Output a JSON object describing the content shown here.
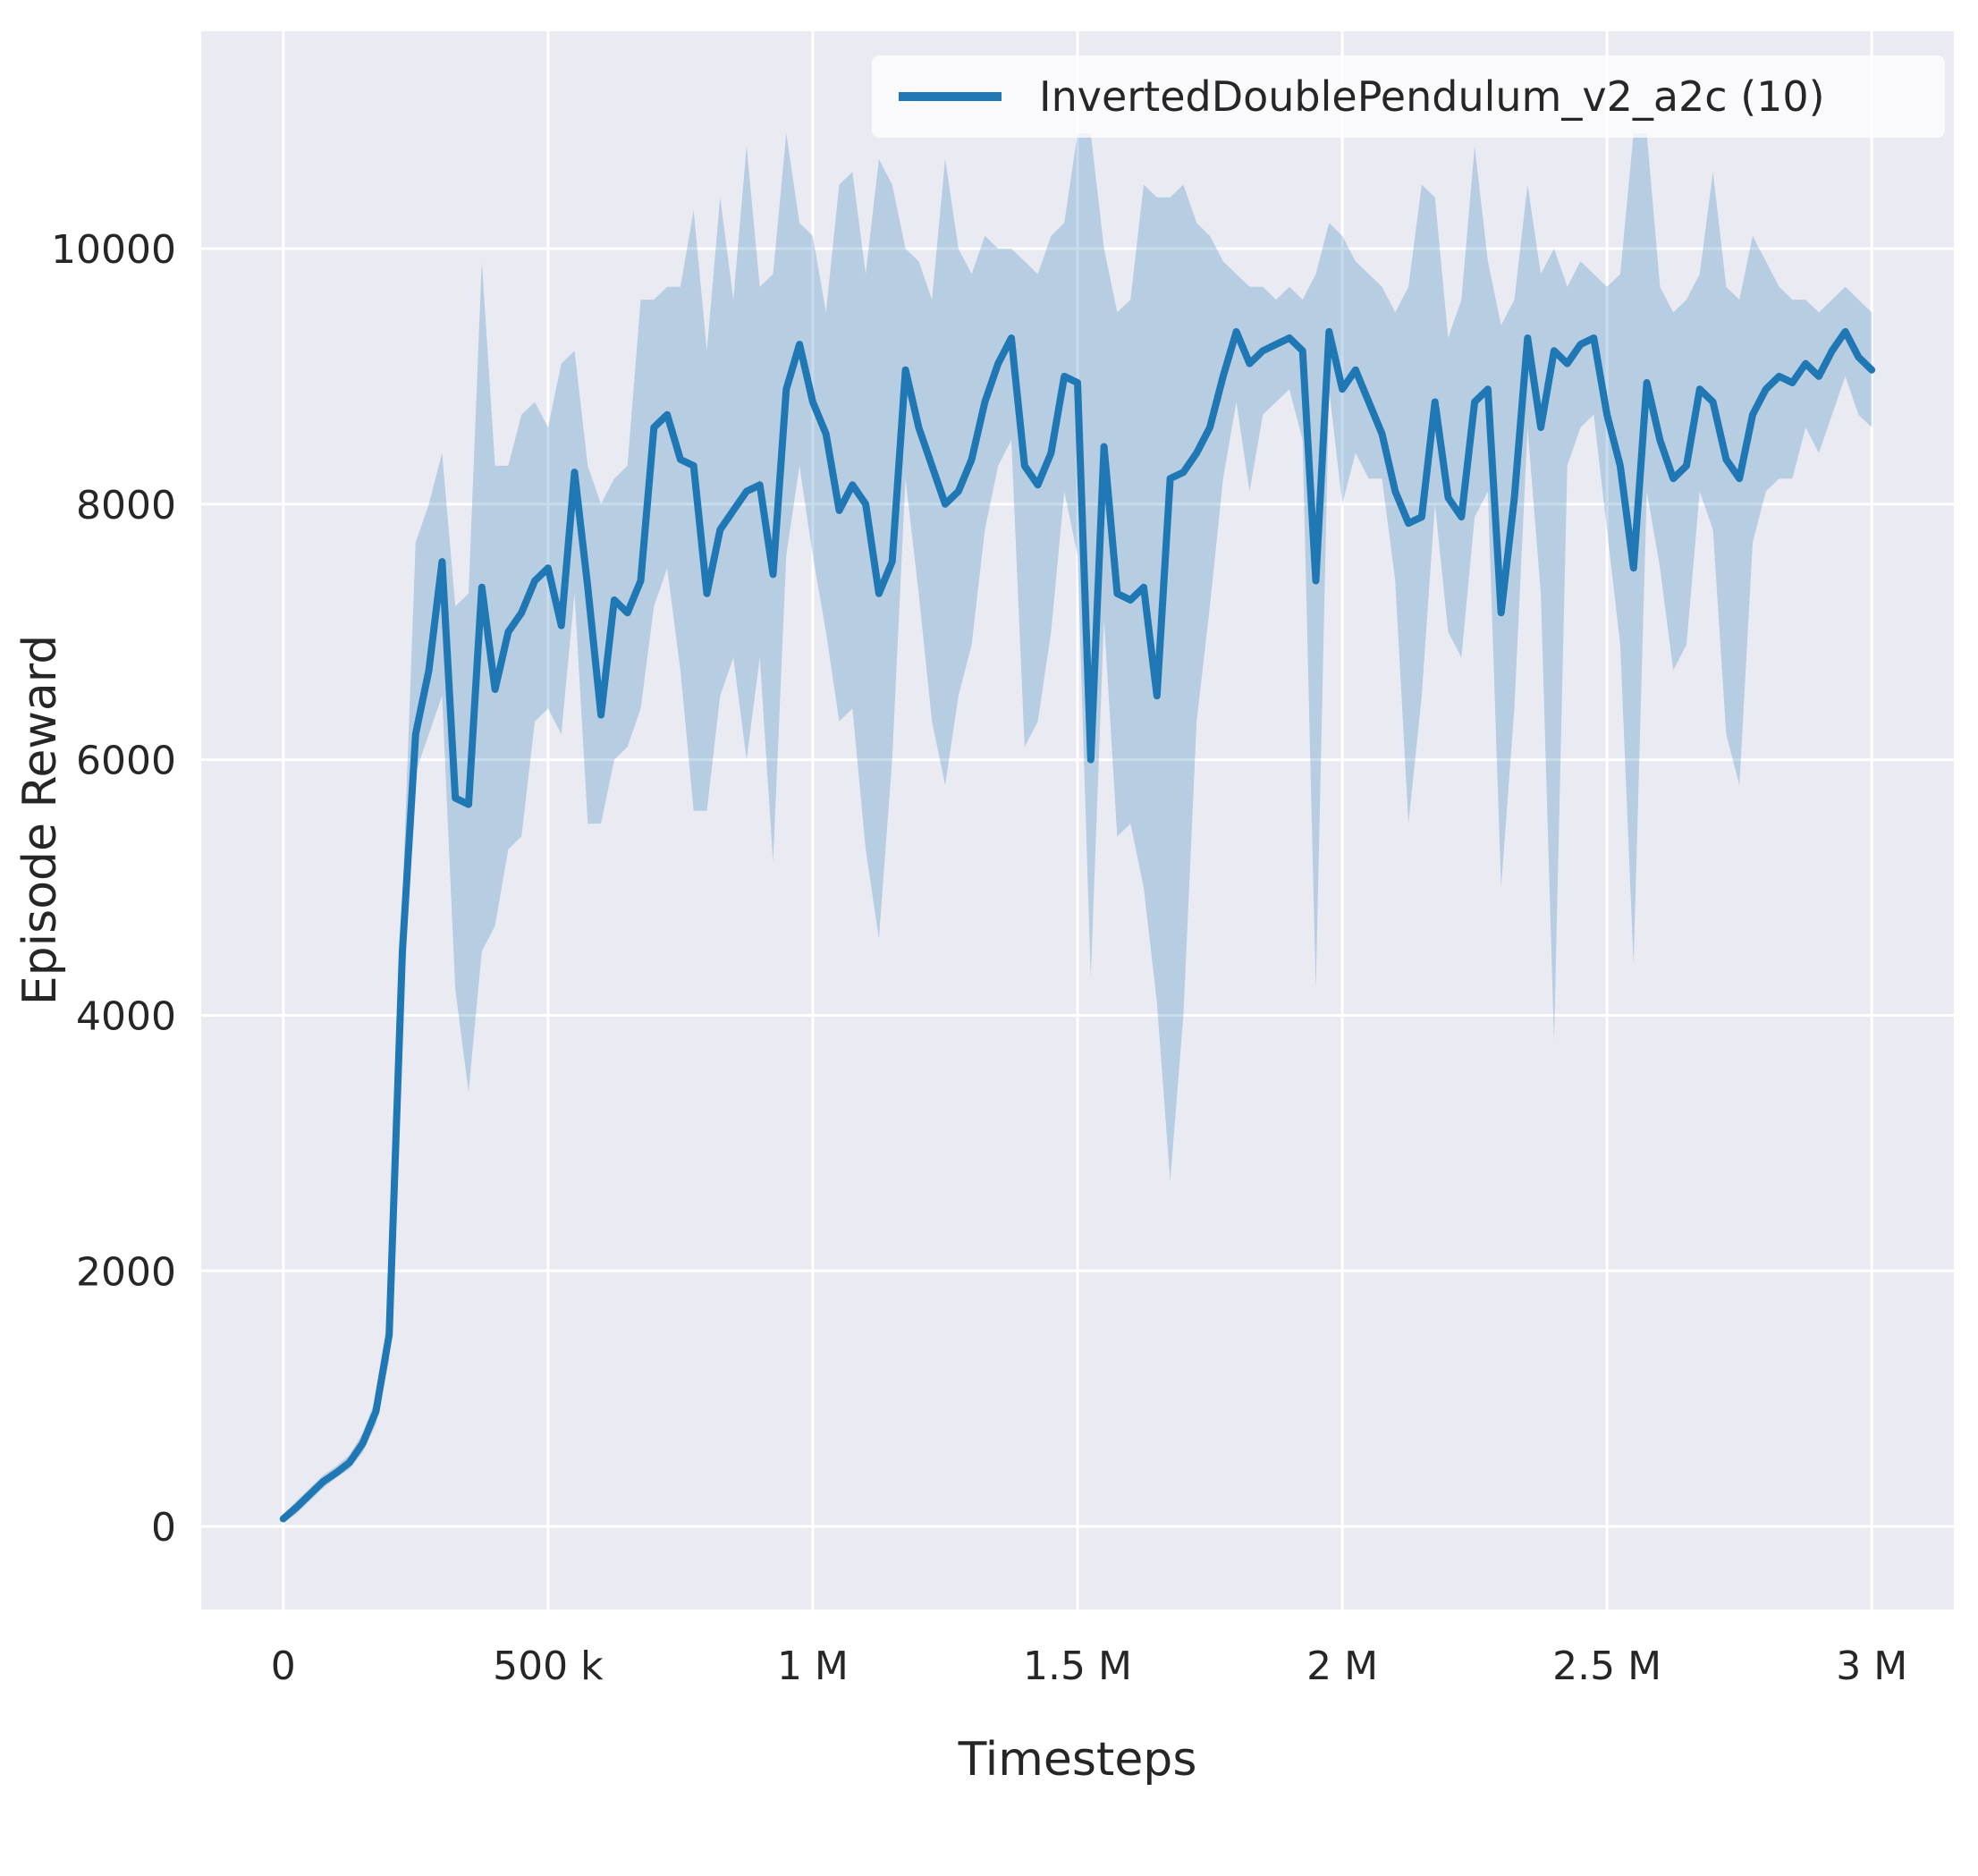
{
  "figure": {
    "background": "#ffffff",
    "plot_background": "#eaeaf2",
    "grid_color": "#ffffff",
    "text_color": "#262626"
  },
  "legend": {
    "label": "InvertedDoublePendulum_v2_a2c (10)",
    "line_color": "#1f77b4",
    "position": "upper right"
  },
  "chart_data": {
    "type": "line",
    "title": "",
    "xlabel": "Timesteps",
    "ylabel": "Episode Reward",
    "grid": true,
    "legend_position": "upper right",
    "xlim": [
      -155000,
      3155000
    ],
    "ylim": [
      -650,
      11700
    ],
    "x_ticks": [
      {
        "value": 0,
        "label": "0"
      },
      {
        "value": 500000,
        "label": "500 k"
      },
      {
        "value": 1000000,
        "label": "1 M"
      },
      {
        "value": 1500000,
        "label": "1.5 M"
      },
      {
        "value": 2000000,
        "label": "2 M"
      },
      {
        "value": 2500000,
        "label": "2.5 M"
      },
      {
        "value": 3000000,
        "label": "3 M"
      }
    ],
    "y_ticks": [
      {
        "value": 0,
        "label": "0"
      },
      {
        "value": 2000,
        "label": "2000"
      },
      {
        "value": 4000,
        "label": "4000"
      },
      {
        "value": 6000,
        "label": "6000"
      },
      {
        "value": 8000,
        "label": "8000"
      },
      {
        "value": 10000,
        "label": "10000"
      }
    ],
    "series": [
      {
        "name": "InvertedDoublePendulum_v2_a2c (10)",
        "color": "#1f77b4",
        "band_color": "#1f77b4",
        "band_opacity": 0.25,
        "line_width": 8,
        "x": [
          0,
          25000,
          50000,
          75000,
          100000,
          125000,
          150000,
          175000,
          200000,
          225000,
          250000,
          275000,
          300000,
          325000,
          350000,
          375000,
          400000,
          425000,
          450000,
          475000,
          500000,
          525000,
          550000,
          575000,
          600000,
          625000,
          650000,
          675000,
          700000,
          725000,
          750000,
          775000,
          800000,
          825000,
          850000,
          875000,
          900000,
          925000,
          950000,
          975000,
          1000000,
          1025000,
          1050000,
          1075000,
          1100000,
          1125000,
          1150000,
          1175000,
          1200000,
          1225000,
          1250000,
          1275000,
          1300000,
          1325000,
          1350000,
          1375000,
          1400000,
          1425000,
          1450000,
          1475000,
          1500000,
          1525000,
          1550000,
          1575000,
          1600000,
          1625000,
          1650000,
          1675000,
          1700000,
          1725000,
          1750000,
          1775000,
          1800000,
          1825000,
          1850000,
          1875000,
          1900000,
          1925000,
          1950000,
          1975000,
          2000000,
          2025000,
          2050000,
          2075000,
          2100000,
          2125000,
          2150000,
          2175000,
          2200000,
          2225000,
          2250000,
          2275000,
          2300000,
          2325000,
          2350000,
          2375000,
          2400000,
          2425000,
          2450000,
          2475000,
          2500000,
          2525000,
          2550000,
          2575000,
          2600000,
          2625000,
          2650000,
          2675000,
          2700000,
          2725000,
          2750000,
          2775000,
          2800000,
          2825000,
          2850000,
          2875000,
          2900000,
          2925000,
          2950000,
          2975000,
          3000000
        ],
        "mean": [
          60,
          150,
          250,
          350,
          420,
          500,
          650,
          900,
          1500,
          4500,
          6200,
          6700,
          7550,
          5700,
          5650,
          7350,
          6550,
          7000,
          7150,
          7400,
          7500,
          7050,
          8250,
          7350,
          6350,
          7250,
          7150,
          7400,
          8600,
          8700,
          8350,
          8300,
          7300,
          7800,
          7950,
          8100,
          8150,
          7450,
          8900,
          9250,
          8800,
          8550,
          7950,
          8150,
          8000,
          7300,
          7550,
          9050,
          8600,
          8300,
          8000,
          8100,
          8350,
          8800,
          9100,
          9300,
          8300,
          8150,
          8400,
          9000,
          8950,
          6000,
          8450,
          7300,
          7250,
          7350,
          6500,
          8200,
          8250,
          8400,
          8600,
          9000,
          9350,
          9100,
          9200,
          9250,
          9300,
          9200,
          7400,
          9350,
          8900,
          9050,
          8800,
          8550,
          8100,
          7850,
          7900,
          8800,
          8050,
          7900,
          8800,
          8900,
          7150,
          8050,
          9300,
          8600,
          9200,
          9100,
          9250,
          9300,
          8700,
          8300,
          7500,
          8950,
          8500,
          8200,
          8300,
          8900,
          8800,
          8350,
          8200,
          8700,
          8900,
          9000,
          8950,
          9100,
          9000,
          9200,
          9350,
          9150,
          9050
        ],
        "lower": [
          30,
          100,
          200,
          300,
          380,
          450,
          580,
          800,
          1300,
          4100,
          5900,
          6200,
          6500,
          4200,
          3400,
          4500,
          4700,
          5300,
          5400,
          6300,
          6400,
          6200,
          7300,
          5500,
          5500,
          6000,
          6100,
          6400,
          7200,
          7500,
          6700,
          5600,
          5600,
          6500,
          6800,
          6000,
          6800,
          5200,
          7600,
          8300,
          7600,
          7000,
          6300,
          6400,
          5300,
          4600,
          6000,
          8200,
          7300,
          6300,
          5800,
          6500,
          6900,
          7800,
          8300,
          8500,
          6100,
          6300,
          7000,
          8100,
          7600,
          4300,
          7100,
          5400,
          5500,
          5000,
          4100,
          2700,
          4000,
          6300,
          7200,
          8200,
          8800,
          8100,
          8700,
          8800,
          8900,
          8500,
          4200,
          8900,
          8000,
          8400,
          8200,
          8200,
          7400,
          5500,
          6500,
          8000,
          7000,
          6800,
          7900,
          8100,
          5000,
          6400,
          8600,
          7300,
          3800,
          8300,
          8600,
          8700,
          7800,
          6900,
          4400,
          8100,
          7500,
          6700,
          6900,
          8100,
          7800,
          6200,
          5800,
          7700,
          8100,
          8200,
          8200,
          8600,
          8400,
          8700,
          9000,
          8700,
          8600
        ],
        "upper": [
          90,
          200,
          300,
          400,
          470,
          560,
          730,
          1000,
          1700,
          4900,
          7700,
          8000,
          8400,
          7200,
          7300,
          9900,
          8300,
          8300,
          8700,
          8800,
          8600,
          9100,
          9200,
          8300,
          8000,
          8200,
          8300,
          9600,
          9600,
          9700,
          9700,
          10300,
          9200,
          10400,
          9600,
          10800,
          9700,
          9800,
          10900,
          10200,
          10100,
          9500,
          10500,
          10600,
          9800,
          10700,
          10500,
          10000,
          9900,
          9600,
          10700,
          10000,
          9800,
          10100,
          10000,
          10000,
          9900,
          9800,
          10100,
          10200,
          10900,
          10900,
          10000,
          9500,
          9600,
          10500,
          10400,
          10400,
          10500,
          10200,
          10100,
          9900,
          9800,
          9700,
          9700,
          9600,
          9700,
          9600,
          9800,
          10200,
          10100,
          9900,
          9800,
          9700,
          9500,
          9700,
          10500,
          10400,
          9300,
          9600,
          10800,
          9900,
          9400,
          9600,
          10500,
          9800,
          10000,
          9700,
          9900,
          9800,
          9700,
          9800,
          10900,
          10900,
          9700,
          9500,
          9600,
          9800,
          10600,
          9700,
          9600,
          10100,
          9900,
          9700,
          9600,
          9600,
          9500,
          9600,
          9700,
          9600,
          9500
        ]
      }
    ]
  }
}
